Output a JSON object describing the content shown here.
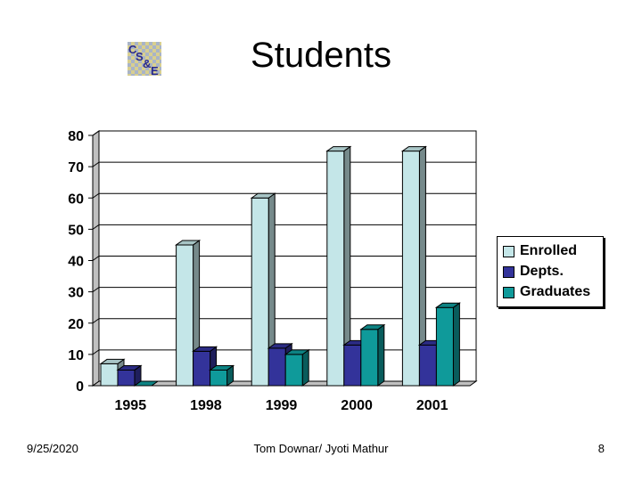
{
  "slide": {
    "title": "Students",
    "logo_text": "CS&E",
    "footer_date": "9/25/2020",
    "footer_author": "Tom Downar/ Jyoti Mathur",
    "footer_page": "8"
  },
  "colors": {
    "enrolled": "#c4e6e8",
    "depts": "#33339a",
    "graduates": "#0f9a9a"
  },
  "chart_data": {
    "type": "bar",
    "title": "",
    "xlabel": "",
    "ylabel": "",
    "categories": [
      "1995",
      "1998",
      "1999",
      "2000",
      "2001"
    ],
    "series": [
      {
        "name": "Enrolled",
        "values": [
          7,
          45,
          60,
          75,
          75
        ]
      },
      {
        "name": "Depts.",
        "values": [
          5,
          11,
          12,
          13,
          13
        ]
      },
      {
        "name": "Graduates",
        "values": [
          0,
          5,
          10,
          18,
          25
        ]
      }
    ],
    "ylim": [
      0,
      80
    ],
    "yticks": [
      "0",
      "10",
      "20",
      "30",
      "40",
      "50",
      "60",
      "70",
      "80"
    ],
    "grid": true,
    "legend": "right",
    "style": "3d-clustered"
  }
}
